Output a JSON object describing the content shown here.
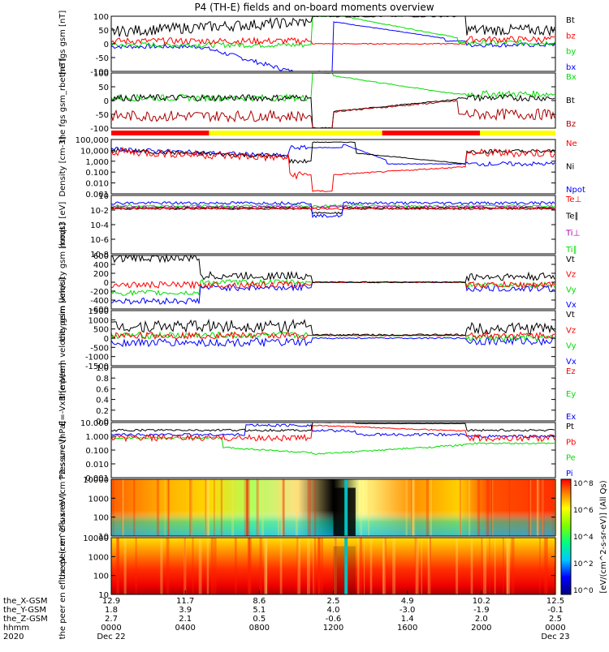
{
  "title": "P4 (TH-E) fields and on-board moments overview",
  "chart_data": [
    {
      "type": "line",
      "ylabel": "the fgs gsm [nT]",
      "ylim": [
        -100,
        100
      ],
      "ticks": [
        "100",
        "50",
        "0",
        "-50",
        "-100"
      ],
      "legend": [
        {
          "name": "Bt",
          "color": "#000000"
        },
        {
          "name": "bz",
          "color": "#ff0000"
        },
        {
          "name": "by",
          "color": "#00dd00"
        },
        {
          "name": "bx",
          "color": "#0000ff"
        }
      ]
    },
    {
      "type": "line",
      "ylabel": "the fgs gsm_rbe [nT]",
      "ylim": [
        -120,
        120
      ],
      "ticks": [
        "100",
        "50",
        "0",
        "-50",
        "-100"
      ],
      "legend": [
        {
          "name": "Bx",
          "color": "#00dd00"
        },
        {
          "name": "Bt",
          "color": "#000000"
        },
        {
          "name": "Bz",
          "color": "#aa0000"
        }
      ]
    },
    {
      "type": "line",
      "ylabel": "Density [cm-3]",
      "ylim": [
        0.001,
        100000
      ],
      "scale": "log",
      "ticks": [
        "100,000",
        "10,000",
        "1,000",
        "0.100",
        "0.010",
        "0.001"
      ],
      "legend": [
        {
          "name": "Ne",
          "color": "#ff0000"
        },
        {
          "name": "Ni",
          "color": "#000000"
        },
        {
          "name": "Npot",
          "color": "#0000ff"
        }
      ]
    },
    {
      "type": "line",
      "ylabel": "moqt3 [eV]",
      "scale": "log",
      "ticks": [
        "10",
        "10-2",
        "10-4",
        "10-6",
        "10-8"
      ],
      "legend": [
        {
          "name": "Te⊥",
          "color": "#ff0000"
        },
        {
          "name": "Te∥",
          "color": "#000000"
        },
        {
          "name": "Ti⊥",
          "color": "#aa00aa"
        },
        {
          "name": "Ti∥",
          "color": "#00dd00"
        }
      ]
    },
    {
      "type": "line",
      "ylabel": "the peim velocity gsm [km/s]",
      "ylim": [
        -600,
        600
      ],
      "ticks": [
        "600",
        "400",
        "200",
        "0",
        "-200",
        "-400",
        "-600"
      ],
      "legend": [
        {
          "name": "Vt",
          "color": "#000000"
        },
        {
          "name": "Vz",
          "color": "#ff0000"
        },
        {
          "name": "Vy",
          "color": "#00dd00"
        },
        {
          "name": "Vx",
          "color": "#0000ff"
        }
      ]
    },
    {
      "type": "line",
      "ylabel": "the peem velocity gsm [km/s]",
      "ylim": [
        -1500,
        1500
      ],
      "ticks": [
        "1500",
        "1000",
        "500",
        "0",
        "-500",
        "-1000",
        "-1500"
      ],
      "legend": [
        {
          "name": "Vt",
          "color": "#000000"
        },
        {
          "name": "Vz",
          "color": "#ff0000"
        },
        {
          "name": "Vy",
          "color": "#00dd00"
        },
        {
          "name": "Vx",
          "color": "#0000ff"
        }
      ]
    },
    {
      "type": "line",
      "ylabel": "E=-VxB [mV/m]",
      "ylim": [
        0,
        1
      ],
      "ticks": [
        "1.0",
        "0.8",
        "0.6",
        "0.4",
        "0.2",
        "0.0"
      ],
      "legend": [
        {
          "name": "Ez",
          "color": "#ff0000"
        },
        {
          "name": "Ey",
          "color": "#00dd00"
        },
        {
          "name": "Ex",
          "color": "#0000ff"
        }
      ]
    },
    {
      "type": "line",
      "ylabel": "Pressure [nPa]",
      "ylim": [
        0.001,
        10
      ],
      "scale": "log",
      "ticks": [
        "10.000",
        "1.000",
        "0.100",
        "0.010",
        "0.001"
      ],
      "legend": [
        {
          "name": "Pt",
          "color": "#000000"
        },
        {
          "name": "Pb",
          "color": "#ff0000"
        },
        {
          "name": "Pe",
          "color": "#00dd00"
        },
        {
          "name": "Pi",
          "color": "#0000ff"
        }
      ]
    },
    {
      "type": "heatmap",
      "ylabel": "the peir en eflux eV (cm^2-s-sr-eV)",
      "ylim": [
        10,
        10000
      ],
      "scale": "log",
      "ticks": [
        "10000",
        "1000",
        "100",
        "10"
      ]
    },
    {
      "type": "heatmap",
      "ylabel": "the peer en eflux eV (cm^2-s-sr-eV)",
      "ylim": [
        10,
        10000
      ],
      "scale": "log",
      "ticks": [
        "10000",
        "1000",
        "100",
        "10"
      ]
    }
  ],
  "colorbar": {
    "label": "[eV/(cm^2-s-sr-eV)] (All Qs)",
    "ticks": [
      "10^8",
      "10^6",
      "10^4",
      "10^2",
      "10^0"
    ]
  },
  "xaxis": {
    "row_labels": [
      "the_X-GSM",
      "the_Y-GSM",
      "the_Z-GSM",
      "hhmm",
      "2020"
    ],
    "ticks": [
      {
        "x": "12.9",
        "y": "1.8",
        "z": "2.7",
        "hhmm": "0000",
        "date": "Dec 22"
      },
      {
        "x": "11.7",
        "y": "3.9",
        "z": "2.1",
        "hhmm": "0400",
        "date": ""
      },
      {
        "x": "8.6",
        "y": "5.1",
        "z": "0.5",
        "hhmm": "0800",
        "date": ""
      },
      {
        "x": "2.5",
        "y": "4.0",
        "z": "-0.6",
        "hhmm": "1200",
        "date": ""
      },
      {
        "x": "4.9",
        "y": "-3.0",
        "z": "1.4",
        "hhmm": "1600",
        "date": ""
      },
      {
        "x": "10.2",
        "y": "-1.9",
        "z": "2.0",
        "hhmm": "2000",
        "date": ""
      },
      {
        "x": "12.5",
        "y": "-0.1",
        "z": "2.5",
        "hhmm": "0000",
        "date": "Dec 23"
      }
    ]
  }
}
